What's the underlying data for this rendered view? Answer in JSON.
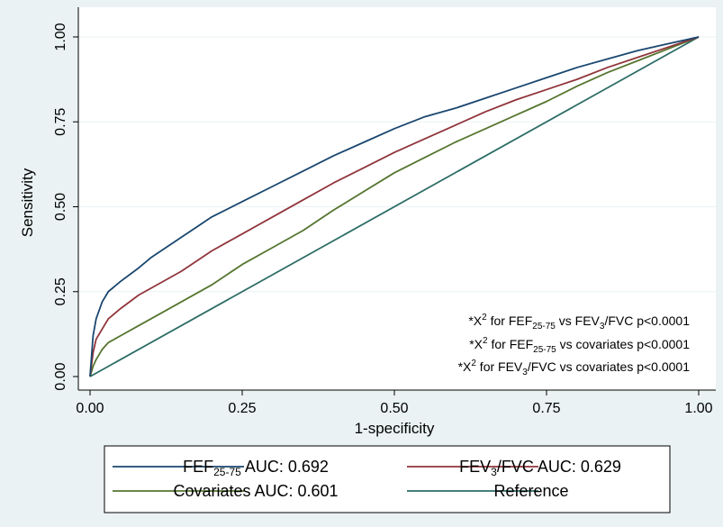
{
  "chart_data": {
    "type": "line",
    "xlabel": "1-specificity",
    "ylabel": "Sensitivity",
    "xlim": [
      0,
      1
    ],
    "ylim": [
      0,
      1
    ],
    "xticks": [
      "0.00",
      "0.25",
      "0.50",
      "0.75",
      "1.00"
    ],
    "yticks": [
      "0.00",
      "0.25",
      "0.50",
      "0.75",
      "1.00"
    ],
    "grid": "y-major",
    "legend_position": "bottom",
    "annotations": [
      {
        "pre": "*X",
        "sup": "2",
        "mid1": " for FEF",
        "sub1": "25-75",
        "mid2": " vs FEV",
        "sub2": "3",
        "post": "/FVC p<0.0001"
      },
      {
        "pre": "*X",
        "sup": "2",
        "mid1": " for FEF",
        "sub1": "25-75",
        "mid2": " vs covariates p<0.0001",
        "sub2": "",
        "post": ""
      },
      {
        "pre": "*X",
        "sup": "2",
        "mid1": " for FEV",
        "sub1": "3",
        "mid2": "/FVC vs covariates p<0.0001",
        "sub2": "",
        "post": ""
      }
    ],
    "series": [
      {
        "name": "FEF25-75 AUC: 0.692",
        "legend": {
          "base": "FEF",
          "sub": "25-75",
          "rest": " AUC: 0.692"
        },
        "color": "#1a476f",
        "x": [
          0,
          0.005,
          0.01,
          0.02,
          0.03,
          0.05,
          0.08,
          0.1,
          0.15,
          0.2,
          0.25,
          0.3,
          0.35,
          0.4,
          0.45,
          0.5,
          0.55,
          0.6,
          0.65,
          0.7,
          0.75,
          0.8,
          0.85,
          0.9,
          0.95,
          1
        ],
        "y": [
          0,
          0.12,
          0.17,
          0.22,
          0.25,
          0.28,
          0.32,
          0.35,
          0.41,
          0.47,
          0.515,
          0.56,
          0.605,
          0.65,
          0.69,
          0.73,
          0.765,
          0.79,
          0.82,
          0.85,
          0.88,
          0.91,
          0.935,
          0.96,
          0.98,
          1
        ]
      },
      {
        "name": "FEV3/FVC AUC: 0.629",
        "legend": {
          "base": "FEV",
          "sub": "3",
          "rest": "/FVC AUC: 0.629"
        },
        "color": "#90353b",
        "x": [
          0,
          0.005,
          0.01,
          0.02,
          0.03,
          0.05,
          0.08,
          0.1,
          0.15,
          0.2,
          0.25,
          0.3,
          0.35,
          0.4,
          0.45,
          0.5,
          0.55,
          0.6,
          0.65,
          0.7,
          0.75,
          0.8,
          0.85,
          0.9,
          0.95,
          1
        ],
        "y": [
          0,
          0.07,
          0.11,
          0.14,
          0.17,
          0.2,
          0.24,
          0.26,
          0.31,
          0.37,
          0.42,
          0.47,
          0.52,
          0.57,
          0.615,
          0.66,
          0.7,
          0.74,
          0.78,
          0.815,
          0.845,
          0.875,
          0.91,
          0.94,
          0.97,
          1
        ]
      },
      {
        "name": "Covariates AUC: 0.601",
        "legend": {
          "base": "Covariates AUC: 0.601",
          "sub": "",
          "rest": ""
        },
        "color": "#55752f",
        "x": [
          0,
          0.005,
          0.01,
          0.02,
          0.03,
          0.05,
          0.08,
          0.1,
          0.15,
          0.2,
          0.25,
          0.3,
          0.35,
          0.4,
          0.45,
          0.5,
          0.55,
          0.6,
          0.65,
          0.7,
          0.75,
          0.8,
          0.85,
          0.9,
          0.95,
          1
        ],
        "y": [
          0,
          0.03,
          0.05,
          0.08,
          0.1,
          0.12,
          0.15,
          0.17,
          0.22,
          0.27,
          0.33,
          0.38,
          0.43,
          0.49,
          0.545,
          0.6,
          0.645,
          0.69,
          0.73,
          0.77,
          0.81,
          0.855,
          0.895,
          0.93,
          0.965,
          1
        ]
      },
      {
        "name": "Reference",
        "legend": {
          "base": "Reference",
          "sub": "",
          "rest": ""
        },
        "color": "#2d6d66",
        "x": [
          0,
          1
        ],
        "y": [
          0,
          1
        ]
      }
    ]
  },
  "colors": {
    "page_background": "#eaf2f3",
    "plot_background": "#ffffff",
    "grid": "#eaf2f3"
  }
}
